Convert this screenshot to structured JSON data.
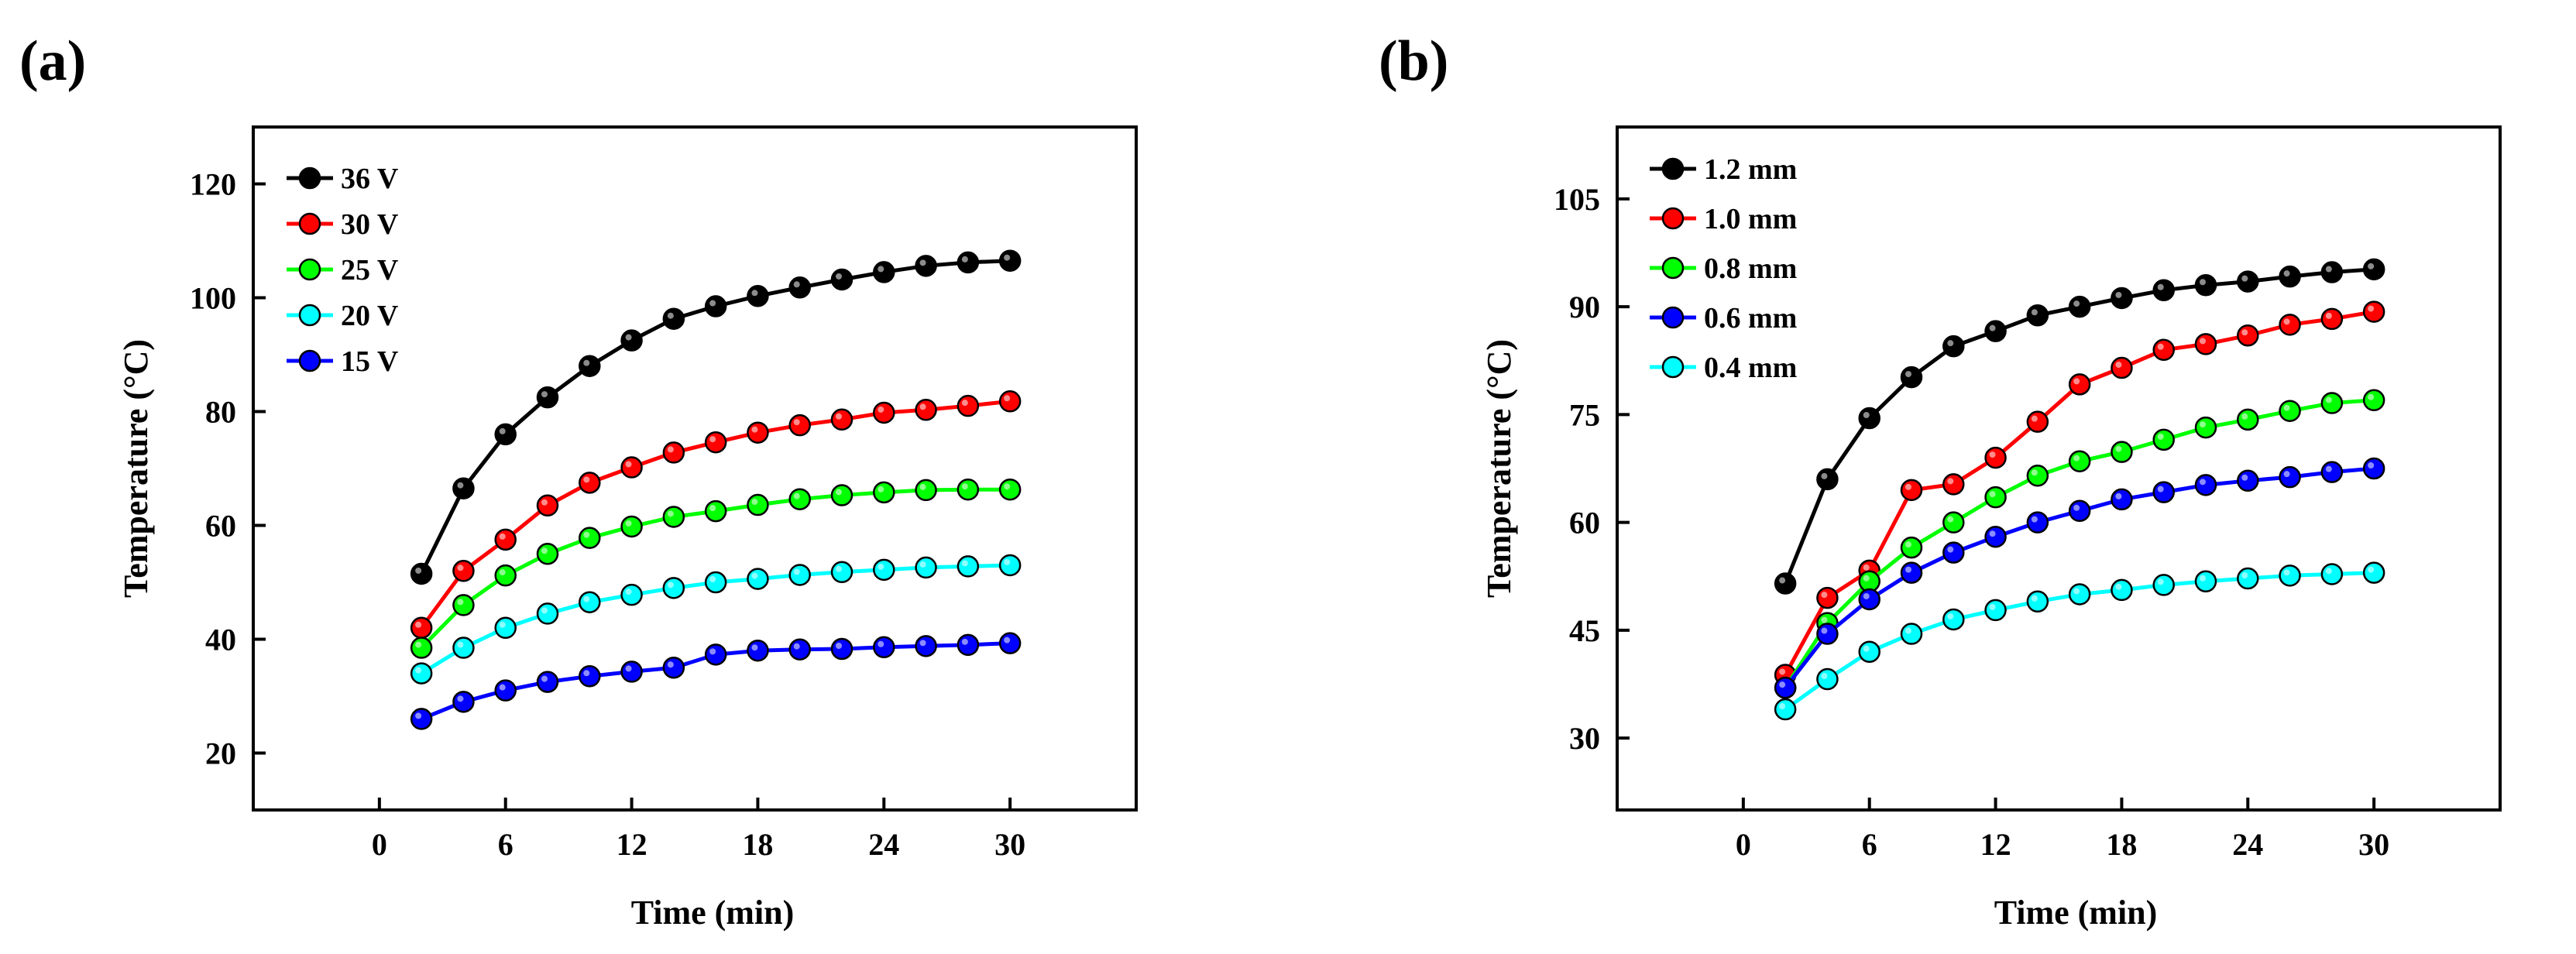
{
  "chart_data": [
    {
      "type": "line",
      "panel_label": "(a)",
      "title": "",
      "xlabel": "Time (min)",
      "ylabel": "Temperature (°C)",
      "xlim": [
        -6,
        36
      ],
      "ylim": [
        10,
        130
      ],
      "xticks": [
        0,
        6,
        12,
        18,
        24,
        30
      ],
      "yticks": [
        20,
        40,
        60,
        80,
        100,
        120
      ],
      "legend_position": "top-left",
      "x": [
        2,
        4,
        6,
        8,
        10,
        12,
        14,
        16,
        18,
        20,
        22,
        24,
        26,
        28,
        30
      ],
      "series": [
        {
          "name": "36 V",
          "color": "#000000",
          "values": [
            51.5,
            66.5,
            76,
            82.5,
            88,
            92.5,
            96.3,
            98.5,
            100.3,
            101.8,
            103.2,
            104.5,
            105.6,
            106.2,
            106.5
          ]
        },
        {
          "name": "30 V",
          "color": "#ff0000",
          "values": [
            42,
            52,
            57.5,
            63.5,
            67.5,
            70.2,
            72.8,
            74.6,
            76.3,
            77.6,
            78.6,
            79.8,
            80.3,
            81,
            81.8
          ]
        },
        {
          "name": "25 V",
          "color": "#00ff00",
          "values": [
            38.5,
            46,
            51.2,
            55,
            57.8,
            59.8,
            61.5,
            62.5,
            63.6,
            64.6,
            65.3,
            65.8,
            66.2,
            66.3,
            66.3
          ]
        },
        {
          "name": "20 V",
          "color": "#00ffff",
          "values": [
            34,
            38.5,
            42,
            44.5,
            46.5,
            47.8,
            49,
            50,
            50.6,
            51.3,
            51.8,
            52.2,
            52.6,
            52.8,
            53
          ]
        },
        {
          "name": "15 V",
          "color": "#0000ff",
          "values": [
            26,
            29,
            31,
            32.5,
            33.5,
            34.3,
            35,
            37.3,
            38,
            38.2,
            38.3,
            38.6,
            38.8,
            39,
            39.3
          ]
        }
      ]
    },
    {
      "type": "line",
      "panel_label": "(b)",
      "title": "",
      "xlabel": "Time (min)",
      "ylabel": "Temperature (°C)",
      "xlim": [
        -6,
        36
      ],
      "ylim": [
        20,
        115
      ],
      "xticks": [
        0,
        6,
        12,
        18,
        24,
        30
      ],
      "yticks": [
        30,
        45,
        60,
        75,
        90,
        105
      ],
      "legend_position": "top-left",
      "x": [
        2,
        4,
        6,
        8,
        10,
        12,
        14,
        16,
        18,
        20,
        22,
        24,
        26,
        28,
        30
      ],
      "series": [
        {
          "name": "1.2 mm",
          "color": "#000000",
          "values": [
            51.5,
            66,
            74.5,
            80.2,
            84.5,
            86.6,
            88.8,
            90,
            91.2,
            92.3,
            93,
            93.5,
            94.2,
            94.8,
            95.2
          ]
        },
        {
          "name": "1.0 mm",
          "color": "#ff0000",
          "values": [
            38.8,
            49.5,
            53.3,
            64.5,
            65.3,
            69,
            74,
            79.2,
            81.5,
            84,
            84.8,
            86,
            87.5,
            88.3,
            89.3
          ]
        },
        {
          "name": "0.8 mm",
          "color": "#00ff00",
          "values": [
            37,
            46,
            51.8,
            56.5,
            60,
            63.5,
            66.5,
            68.5,
            69.8,
            71.5,
            73.2,
            74.3,
            75.5,
            76.6,
            77
          ]
        },
        {
          "name": "0.6 mm",
          "color": "#0000ff",
          "values": [
            37,
            44.5,
            49.3,
            53,
            55.8,
            58,
            60,
            61.6,
            63.2,
            64.2,
            65.2,
            65.8,
            66.3,
            67,
            67.5
          ]
        },
        {
          "name": "0.4 mm",
          "color": "#00ffff",
          "values": [
            34,
            38.2,
            42,
            44.5,
            46.5,
            47.8,
            49,
            50,
            50.6,
            51.3,
            51.8,
            52.2,
            52.6,
            52.8,
            53
          ]
        }
      ]
    }
  ]
}
